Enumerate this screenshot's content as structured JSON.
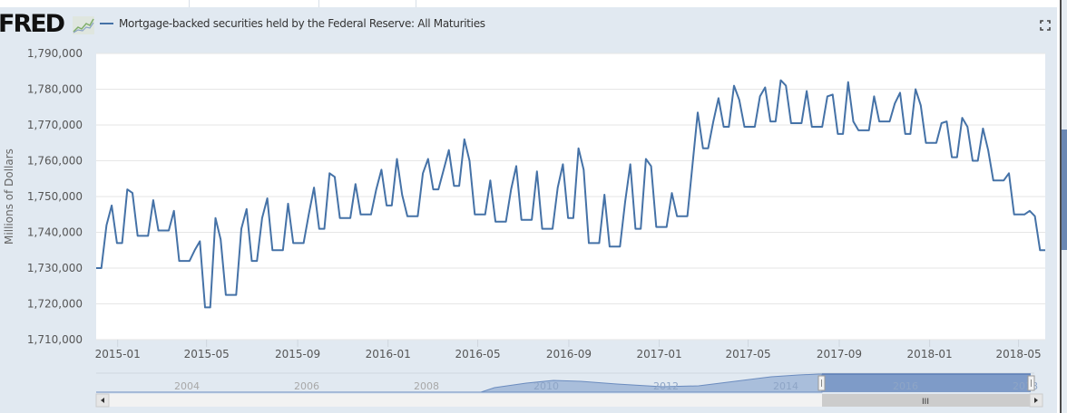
{
  "header": {
    "logo_text": "FRED",
    "legend_label": "Mortgage-backed securities held by the Federal Reserve: All Maturities",
    "fullscreen_icon": "fullscreen-icon",
    "logo_icon": "line-chart-icon"
  },
  "colors": {
    "series": "#4572a7",
    "frame_bg": "#e1e9f1",
    "plot_bg": "#ffffff",
    "grid": "#e6e6e6",
    "navigator_fill": "#7e9bc8",
    "navigator_outside_fill": "#a9bedb"
  },
  "navigator": {
    "labels": [
      "2004",
      "2006",
      "2008",
      "2010",
      "2012",
      "2014",
      "2016",
      "2018"
    ],
    "scroll_left_icon": "arrow-left-icon",
    "scroll_right_icon": "arrow-right-icon",
    "scrollbar_grip": "III",
    "selection_start": "2014-12",
    "selection_end": "2018-05"
  },
  "chart_data": {
    "type": "line",
    "title": "",
    "xlabel": "",
    "ylabel": "Millions of Dollars",
    "ylim": [
      1710000,
      1790000
    ],
    "yticks": [
      1710000,
      1720000,
      1730000,
      1740000,
      1750000,
      1760000,
      1770000,
      1780000,
      1790000
    ],
    "ytick_labels": [
      "1,710,000",
      "1,720,000",
      "1,730,000",
      "1,740,000",
      "1,750,000",
      "1,760,000",
      "1,770,000",
      "1,780,000",
      "1,790,000"
    ],
    "xticks": [
      "2015-01",
      "2015-05",
      "2015-09",
      "2016-01",
      "2016-05",
      "2016-09",
      "2017-01",
      "2017-05",
      "2017-09",
      "2018-01",
      "2018-05"
    ],
    "x_start": "2014-12-03",
    "x_end": "2018-06-06",
    "frequency": "weekly",
    "grid": true,
    "legend": "top-left",
    "series": [
      {
        "name": "Mortgage-backed securities held by the Federal Reserve: All Maturities",
        "values": [
          1730000,
          1730000,
          1742000,
          1747500,
          1737000,
          1737000,
          1752000,
          1751000,
          1739000,
          1739000,
          1739000,
          1749000,
          1740500,
          1740500,
          1740500,
          1746000,
          1732000,
          1732000,
          1732000,
          1735000,
          1737500,
          1719000,
          1719000,
          1744000,
          1738000,
          1722500,
          1722500,
          1722500,
          1741000,
          1746500,
          1732000,
          1732000,
          1744000,
          1749500,
          1735000,
          1735000,
          1735000,
          1748000,
          1737000,
          1737000,
          1737000,
          1745000,
          1752500,
          1741000,
          1741000,
          1756500,
          1755500,
          1744000,
          1744000,
          1744000,
          1753500,
          1745000,
          1745000,
          1745000,
          1752000,
          1757500,
          1747500,
          1747500,
          1760500,
          1750500,
          1744500,
          1744500,
          1744500,
          1756500,
          1760500,
          1752000,
          1752000,
          1757500,
          1763000,
          1753000,
          1753000,
          1766000,
          1760000,
          1745000,
          1745000,
          1745000,
          1754500,
          1743000,
          1743000,
          1743000,
          1752000,
          1758500,
          1743500,
          1743500,
          1743500,
          1757000,
          1741000,
          1741000,
          1741000,
          1752500,
          1759000,
          1744000,
          1744000,
          1763500,
          1757500,
          1737000,
          1737000,
          1737000,
          1750500,
          1736000,
          1736000,
          1736000,
          1748500,
          1759000,
          1741000,
          1741000,
          1760500,
          1758500,
          1741500,
          1741500,
          1741500,
          1751000,
          1744500,
          1744500,
          1744500,
          1759000,
          1773500,
          1763500,
          1763500,
          1771000,
          1777500,
          1769500,
          1769500,
          1781000,
          1777000,
          1769500,
          1769500,
          1769500,
          1778000,
          1780500,
          1771000,
          1771000,
          1782500,
          1781000,
          1770500,
          1770500,
          1770500,
          1779500,
          1769500,
          1769500,
          1769500,
          1778000,
          1778500,
          1767500,
          1767500,
          1782000,
          1771000,
          1768500,
          1768500,
          1768500,
          1778000,
          1771000,
          1771000,
          1771000,
          1776000,
          1779000,
          1767500,
          1767500,
          1780000,
          1775500,
          1765000,
          1765000,
          1765000,
          1770500,
          1771000,
          1761000,
          1761000,
          1772000,
          1769500,
          1760000,
          1760000,
          1769000,
          1763000,
          1754500,
          1754500,
          1754500,
          1756500,
          1745000,
          1745000,
          1745000,
          1746000,
          1744500,
          1735000,
          1735000
        ]
      }
    ]
  }
}
